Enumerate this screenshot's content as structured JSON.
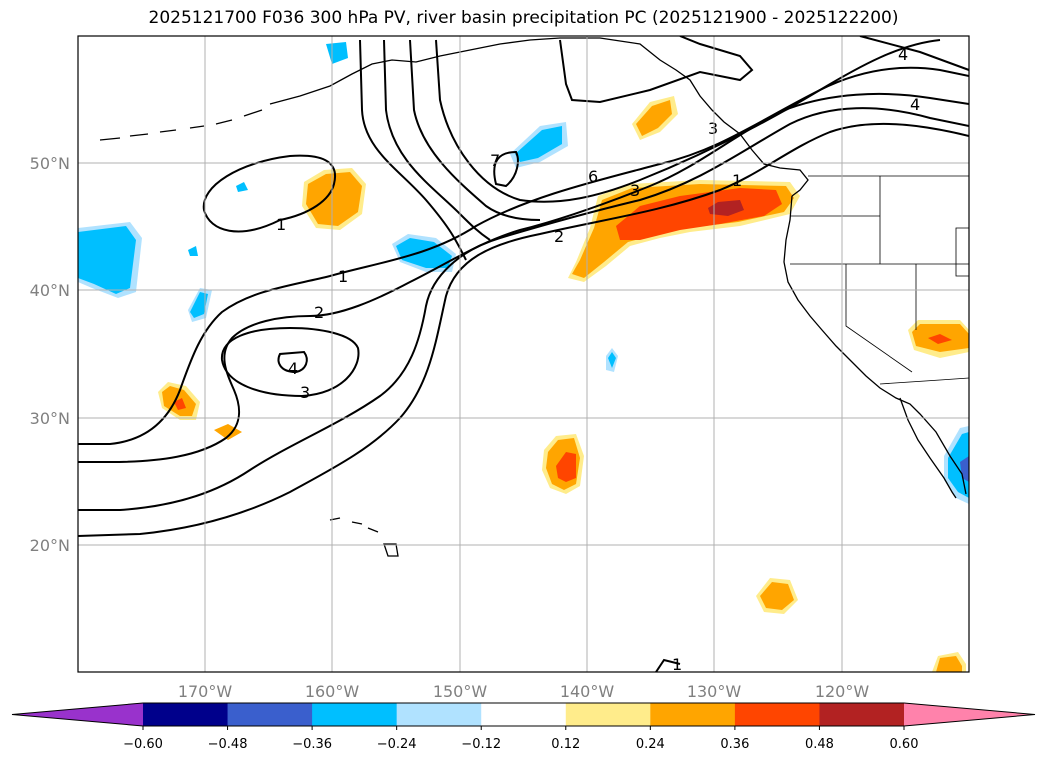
{
  "title": "2025121700 F036 300 hPa PV, river basin precipitation PC (2025121900 - 2025122200)",
  "lat_labels": [
    "50°N",
    "40°N",
    "30°N",
    "20°N"
  ],
  "lon_labels": [
    "170°W",
    "160°W",
    "150°W",
    "140°W",
    "130°W",
    "120°W"
  ],
  "colorbar": {
    "colors": [
      "#9932cc",
      "#00008b",
      "#3a5fcd",
      "#00bfff",
      "#b0e2ff",
      "#ffffff",
      "#ffec8b",
      "#ffa500",
      "#ff4500",
      "#b22222",
      "#ff82ab"
    ],
    "tick_labels": [
      "−0.60",
      "−0.48",
      "−0.36",
      "−0.24",
      "−0.12",
      "0.12",
      "0.24",
      "0.36",
      "0.48",
      "0.60"
    ]
  },
  "contour_labels": [
    {
      "text": "1"
    },
    {
      "text": "1"
    },
    {
      "text": "2"
    },
    {
      "text": "3"
    },
    {
      "text": "4"
    },
    {
      "text": "7"
    },
    {
      "text": "6"
    },
    {
      "text": "3"
    },
    {
      "text": "2"
    },
    {
      "text": "1"
    },
    {
      "text": "4"
    },
    {
      "text": "4"
    },
    {
      "text": "3"
    },
    {
      "text": "1"
    }
  ],
  "colors": {
    "contour": "#000000",
    "grid": "#b0b0b0",
    "axis_label": "#808080"
  }
}
